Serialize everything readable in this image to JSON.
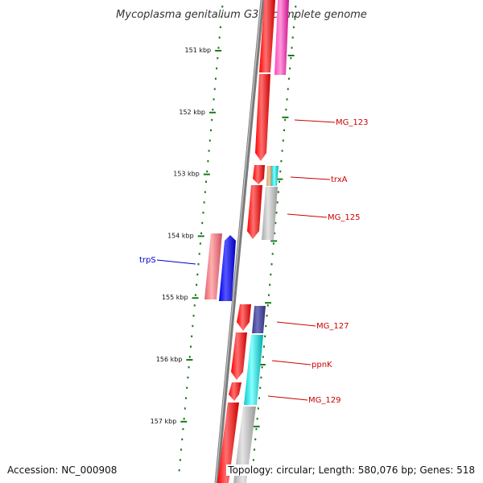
{
  "title": "Mycoplasma genitalium G37, complete genome",
  "footer": {
    "accession": "Accession: NC_000908",
    "summary": "Topology: circular; Length: 580,076 bp; Genes: 518"
  },
  "ticks": [
    {
      "label": "151 kbp",
      "kbp": 151
    },
    {
      "label": "152 kbp",
      "kbp": 152
    },
    {
      "label": "153 kbp",
      "kbp": 153
    },
    {
      "label": "154 kbp",
      "kbp": 154
    },
    {
      "label": "155 kbp",
      "kbp": 155
    },
    {
      "label": "156 kbp",
      "kbp": 156
    },
    {
      "label": "157 kbp",
      "kbp": 157
    }
  ],
  "colors": {
    "backbone": "#808080",
    "ticks": "#1a7a1a",
    "forward_label": "#0000cc",
    "reverse_label": "#cc0000",
    "cds": "#ff0000",
    "pink": "#ff33aa",
    "gray": "#bbbbbb",
    "cyan": "#00dddd",
    "tan": "#d8b080",
    "salmon": "#f08080",
    "blue": "#0000ff",
    "navy": "#404090"
  },
  "genes": [
    {
      "label": "MG_123",
      "strand": "reverse"
    },
    {
      "label": "trxA",
      "strand": "reverse"
    },
    {
      "label": "MG_125",
      "strand": "reverse"
    },
    {
      "label": "trpS",
      "strand": "forward"
    },
    {
      "label": "MG_127",
      "strand": "reverse"
    },
    {
      "label": "ppnK",
      "strand": "reverse"
    },
    {
      "label": "MG_129",
      "strand": "reverse"
    }
  ]
}
